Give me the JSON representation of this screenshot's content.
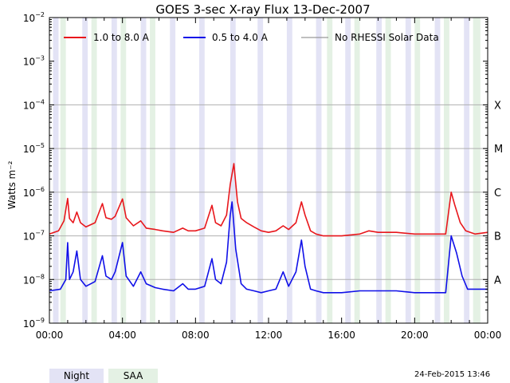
{
  "chart_data": {
    "type": "line",
    "title": "GOES 3-sec X-ray Flux   13-Dec-2007",
    "ylabel": "Watts m⁻²",
    "xlabel": "",
    "y_scale": "log",
    "ylim": [
      1e-09,
      0.01
    ],
    "xlim_hours": [
      0,
      24
    ],
    "x_ticks": [
      "00:00",
      "04:00",
      "08:00",
      "12:00",
      "16:00",
      "20:00",
      "00:00"
    ],
    "y_ticks": [
      {
        "value": 1e-09,
        "label": "10",
        "exp": "−9"
      },
      {
        "value": 1e-08,
        "label": "10",
        "exp": "−8"
      },
      {
        "value": 1e-07,
        "label": "10",
        "exp": "−7"
      },
      {
        "value": 1e-06,
        "label": "10",
        "exp": "−6"
      },
      {
        "value": 1e-05,
        "label": "10",
        "exp": "−5"
      },
      {
        "value": 0.0001,
        "label": "10",
        "exp": "−4"
      },
      {
        "value": 0.001,
        "label": "10",
        "exp": "−3"
      },
      {
        "value": 0.01,
        "label": "10",
        "exp": "−2"
      }
    ],
    "flare_classes": [
      {
        "label": "A",
        "value": 1e-08
      },
      {
        "label": "B",
        "value": 1e-07
      },
      {
        "label": "C",
        "value": 1e-06
      },
      {
        "label": "M",
        "value": 1e-05
      },
      {
        "label": "X",
        "value": 0.0001
      }
    ],
    "grid": true,
    "legend_placement": "top",
    "legend": [
      {
        "label": "1.0 to 8.0 A",
        "color": "#e8171c"
      },
      {
        "label": "0.5 to 4.0 A",
        "color": "#1010e8"
      },
      {
        "label": "No RHESSI Solar Data",
        "color": "#999999"
      }
    ],
    "night_intervals_hours": [
      [
        0.2,
        0.5
      ],
      [
        1.8,
        2.1
      ],
      [
        3.4,
        3.7
      ],
      [
        5.0,
        5.3
      ],
      [
        6.6,
        6.9
      ],
      [
        8.2,
        8.5
      ],
      [
        9.9,
        10.2
      ],
      [
        11.4,
        11.7
      ],
      [
        13.0,
        13.3
      ],
      [
        14.6,
        14.9
      ],
      [
        16.2,
        16.5
      ],
      [
        17.9,
        18.2
      ],
      [
        19.5,
        19.8
      ],
      [
        21.1,
        21.4
      ],
      [
        22.7,
        23.0
      ]
    ],
    "saa_intervals_hours": [
      [
        0.6,
        0.9
      ],
      [
        2.3,
        2.6
      ],
      [
        3.9,
        4.2
      ],
      [
        5.5,
        5.8
      ],
      [
        15.2,
        15.5
      ],
      [
        16.7,
        17.0
      ],
      [
        18.4,
        18.7
      ],
      [
        20.0,
        20.3
      ],
      [
        21.6,
        21.9
      ],
      [
        23.2,
        23.6
      ]
    ],
    "series": [
      {
        "name": "1.0 to 8.0 A",
        "color": "#e8171c",
        "points": [
          [
            0,
            1.1e-07
          ],
          [
            0.5,
            1.3e-07
          ],
          [
            0.8,
            2.2e-07
          ],
          [
            1.0,
            7.2e-07
          ],
          [
            1.1,
            2.5e-07
          ],
          [
            1.3,
            2e-07
          ],
          [
            1.5,
            3.5e-07
          ],
          [
            1.7,
            2e-07
          ],
          [
            2.0,
            1.6e-07
          ],
          [
            2.5,
            2e-07
          ],
          [
            2.9,
            5.5e-07
          ],
          [
            3.1,
            2.6e-07
          ],
          [
            3.4,
            2.4e-07
          ],
          [
            3.6,
            2.8e-07
          ],
          [
            4.0,
            7e-07
          ],
          [
            4.2,
            2.6e-07
          ],
          [
            4.6,
            1.7e-07
          ],
          [
            5.0,
            2.2e-07
          ],
          [
            5.3,
            1.5e-07
          ],
          [
            5.8,
            1.4e-07
          ],
          [
            6.2,
            1.3e-07
          ],
          [
            6.8,
            1.2e-07
          ],
          [
            7.3,
            1.5e-07
          ],
          [
            7.6,
            1.3e-07
          ],
          [
            8.0,
            1.3e-07
          ],
          [
            8.5,
            1.5e-07
          ],
          [
            8.9,
            5e-07
          ],
          [
            9.1,
            2e-07
          ],
          [
            9.4,
            1.7e-07
          ],
          [
            9.7,
            3e-07
          ],
          [
            9.9,
            1.5e-06
          ],
          [
            10.1,
            4.5e-06
          ],
          [
            10.3,
            6e-07
          ],
          [
            10.5,
            2.5e-07
          ],
          [
            10.8,
            2e-07
          ],
          [
            11.2,
            1.6e-07
          ],
          [
            11.6,
            1.3e-07
          ],
          [
            12.0,
            1.2e-07
          ],
          [
            12.4,
            1.3e-07
          ],
          [
            12.8,
            1.7e-07
          ],
          [
            13.1,
            1.4e-07
          ],
          [
            13.5,
            2e-07
          ],
          [
            13.8,
            6e-07
          ],
          [
            14.0,
            3e-07
          ],
          [
            14.3,
            1.3e-07
          ],
          [
            14.6,
            1.1e-07
          ],
          [
            15.0,
            1e-07
          ],
          [
            16.0,
            1e-07
          ],
          [
            17.0,
            1.1e-07
          ],
          [
            17.5,
            1.3e-07
          ],
          [
            18.0,
            1.2e-07
          ],
          [
            19.0,
            1.2e-07
          ],
          [
            20.0,
            1.1e-07
          ],
          [
            21.0,
            1.1e-07
          ],
          [
            21.7,
            1.1e-07
          ],
          [
            22.0,
            1e-06
          ],
          [
            22.2,
            5e-07
          ],
          [
            22.5,
            2e-07
          ],
          [
            22.8,
            1.3e-07
          ],
          [
            23.3,
            1.1e-07
          ],
          [
            24.0,
            1.2e-07
          ]
        ]
      },
      {
        "name": "0.5 to 4.0 A",
        "color": "#1010e8",
        "points": [
          [
            0,
            5.5e-09
          ],
          [
            0.6,
            6e-09
          ],
          [
            0.9,
            1e-08
          ],
          [
            1.0,
            7e-08
          ],
          [
            1.1,
            1e-08
          ],
          [
            1.3,
            1.5e-08
          ],
          [
            1.5,
            4.5e-08
          ],
          [
            1.7,
            1e-08
          ],
          [
            2.0,
            7e-09
          ],
          [
            2.5,
            9e-09
          ],
          [
            2.9,
            3.5e-08
          ],
          [
            3.1,
            1.2e-08
          ],
          [
            3.4,
            1e-08
          ],
          [
            3.6,
            1.5e-08
          ],
          [
            4.0,
            7e-08
          ],
          [
            4.2,
            1.2e-08
          ],
          [
            4.6,
            7e-09
          ],
          [
            5.0,
            1.5e-08
          ],
          [
            5.3,
            8e-09
          ],
          [
            5.8,
            6.5e-09
          ],
          [
            6.2,
            6e-09
          ],
          [
            6.8,
            5.5e-09
          ],
          [
            7.3,
            8e-09
          ],
          [
            7.6,
            6e-09
          ],
          [
            8.0,
            6e-09
          ],
          [
            8.5,
            7e-09
          ],
          [
            8.9,
            3e-08
          ],
          [
            9.1,
            1e-08
          ],
          [
            9.4,
            8e-09
          ],
          [
            9.7,
            2.5e-08
          ],
          [
            9.9,
            3e-07
          ],
          [
            10.0,
            6e-07
          ],
          [
            10.2,
            5e-08
          ],
          [
            10.5,
            8e-09
          ],
          [
            10.8,
            6e-09
          ],
          [
            11.2,
            5.5e-09
          ],
          [
            11.6,
            5e-09
          ],
          [
            12.0,
            5.5e-09
          ],
          [
            12.4,
            6e-09
          ],
          [
            12.8,
            1.5e-08
          ],
          [
            13.1,
            7e-09
          ],
          [
            13.5,
            1.5e-08
          ],
          [
            13.8,
            8e-08
          ],
          [
            14.0,
            2e-08
          ],
          [
            14.3,
            6e-09
          ],
          [
            14.6,
            5.5e-09
          ],
          [
            15.0,
            5e-09
          ],
          [
            16.0,
            5e-09
          ],
          [
            17.0,
            5.5e-09
          ],
          [
            18.0,
            5.5e-09
          ],
          [
            19.0,
            5.5e-09
          ],
          [
            20.0,
            5e-09
          ],
          [
            21.0,
            5e-09
          ],
          [
            21.7,
            5e-09
          ],
          [
            22.0,
            1e-07
          ],
          [
            22.3,
            4e-08
          ],
          [
            22.6,
            1.2e-08
          ],
          [
            22.9,
            6e-09
          ],
          [
            23.4,
            6e-09
          ],
          [
            24.0,
            6e-09
          ]
        ]
      }
    ]
  },
  "bottom_legend": {
    "night": "Night",
    "saa": "SAA"
  },
  "timestamp": "24-Feb-2015 13:46",
  "colors": {
    "night": "#e3e3f5",
    "saa": "#e4f1e4",
    "grid": "#b0b0b0",
    "gray_data": "#999999"
  }
}
